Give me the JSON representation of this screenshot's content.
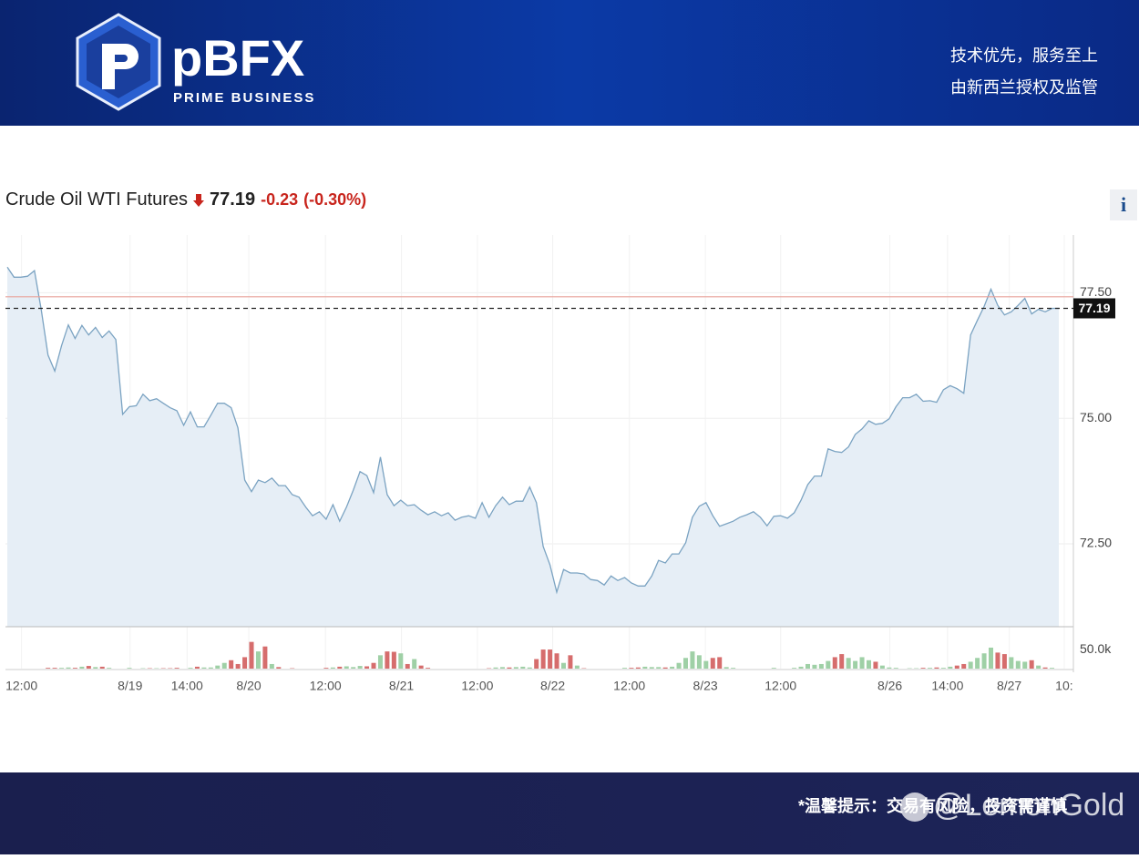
{
  "header": {
    "logo": "pBFX",
    "logo_subtitle": "PRIME BUSINESS",
    "taglines": [
      "技术优先，服务至上",
      "由新西兰授权及监管"
    ]
  },
  "chart_data": {
    "type": "line",
    "title": "Crude Oil WTI Futures",
    "price": "77.19",
    "change": "-0.23",
    "change_percent": "(-0.30%)",
    "info_button": "i",
    "color": "#7ba3c2",
    "fill": "#e6eef6",
    "values": [
      78.01,
      77.81,
      77.81,
      77.83,
      77.94,
      77.17,
      76.26,
      75.94,
      76.45,
      76.86,
      76.59,
      76.85,
      76.66,
      76.81,
      76.61,
      76.74,
      76.57,
      75.08,
      75.23,
      75.25,
      75.48,
      75.35,
      75.39,
      75.3,
      75.21,
      75.15,
      74.86,
      75.13,
      74.83,
      74.83,
      75.06,
      75.3,
      75.3,
      75.21,
      74.81,
      73.77,
      73.54,
      73.77,
      73.72,
      73.81,
      73.66,
      73.66,
      73.48,
      73.43,
      73.23,
      73.06,
      73.14,
      72.99,
      73.28,
      72.95,
      73.23,
      73.57,
      73.94,
      73.86,
      73.52,
      74.23,
      73.48,
      73.26,
      73.37,
      73.26,
      73.28,
      73.17,
      73.08,
      73.14,
      73.06,
      73.12,
      72.97,
      73.03,
      73.06,
      73.01,
      73.32,
      73.03,
      73.26,
      73.43,
      73.28,
      73.35,
      73.35,
      73.63,
      73.32,
      72.45,
      72.08,
      71.54,
      71.99,
      71.92,
      71.92,
      71.9,
      71.79,
      71.77,
      71.68,
      71.86,
      71.77,
      71.83,
      71.72,
      71.66,
      71.66,
      71.86,
      72.17,
      72.12,
      72.3,
      72.3,
      72.52,
      73.03,
      73.25,
      73.32,
      73.06,
      72.85,
      72.9,
      72.95,
      73.03,
      73.08,
      73.14,
      73.03,
      72.86,
      73.05,
      73.06,
      73.01,
      73.12,
      73.37,
      73.68,
      73.85,
      73.85,
      74.39,
      74.34,
      74.32,
      74.43,
      74.68,
      74.79,
      74.95,
      74.88,
      74.9,
      74.99,
      75.23,
      75.41,
      75.41,
      75.48,
      75.34,
      75.35,
      75.32,
      75.57,
      75.65,
      75.59,
      75.5,
      76.66,
      76.95,
      77.23,
      77.57,
      77.25,
      77.06,
      77.12,
      77.25,
      77.39,
      77.08,
      77.17,
      77.12,
      77.19,
      77.19
    ],
    "volume": [
      0,
      0,
      0,
      0,
      0,
      0,
      2000,
      2000,
      2000,
      3000,
      2000,
      5000,
      7000,
      4000,
      5000,
      2000,
      0,
      0,
      2000,
      0,
      1000,
      1000,
      1000,
      1000,
      1000,
      2000,
      0,
      2000,
      5000,
      3000,
      3000,
      8000,
      15000,
      22000,
      12000,
      30000,
      70000,
      45000,
      58000,
      12000,
      4000,
      0,
      1000,
      0,
      0,
      0,
      0,
      2000,
      3000,
      5000,
      6000,
      4000,
      7000,
      6000,
      15000,
      35000,
      45000,
      44000,
      40000,
      12000,
      25000,
      8000,
      2000,
      0,
      0,
      0,
      0,
      0,
      0,
      0,
      0,
      1000,
      3000,
      4000,
      3000,
      4000,
      5000,
      3000,
      25000,
      50000,
      50000,
      40000,
      15000,
      35000,
      8000,
      1000,
      0,
      0,
      0,
      0,
      0,
      2000,
      2000,
      3000,
      5000,
      4000,
      4000,
      3000,
      5000,
      15000,
      28000,
      45000,
      35000,
      20000,
      28000,
      30000,
      4000,
      2000,
      0,
      0,
      0,
      0,
      0,
      2000,
      0,
      0,
      2000,
      5000,
      12000,
      10000,
      12000,
      20000,
      30000,
      38000,
      28000,
      20000,
      30000,
      22000,
      18000,
      8000,
      3000,
      2000,
      0,
      1000,
      1000,
      2000,
      2000,
      3000,
      2000,
      5000,
      8000,
      12000,
      18000,
      28000,
      40000,
      55000,
      42000,
      38000,
      30000,
      20000,
      18000,
      22000,
      8000,
      3000,
      2000,
      0
    ],
    "up_color": "#9fd0a6",
    "down_color": "#d66d6d",
    "reference_line": 77.42,
    "reference_color": "#e8a39b",
    "last_value": 77.19,
    "xlim": [
      0,
      156
    ],
    "xticks": [
      {
        "value": 2.1,
        "label": "12:00"
      },
      {
        "value": 18.1,
        "label": "8/19"
      },
      {
        "value": 26.5,
        "label": "14:00"
      },
      {
        "value": 35.6,
        "label": "8/20"
      },
      {
        "value": 46.9,
        "label": "12:00"
      },
      {
        "value": 58.1,
        "label": "8/21"
      },
      {
        "value": 69.3,
        "label": "12:00"
      },
      {
        "value": 80.4,
        "label": "8/22"
      },
      {
        "value": 91.7,
        "label": "12:00"
      },
      {
        "value": 102.9,
        "label": "8/23"
      },
      {
        "value": 114.0,
        "label": "12:00"
      },
      {
        "value": 130.1,
        "label": "8/26"
      },
      {
        "value": 138.6,
        "label": "14:00"
      },
      {
        "value": 147.7,
        "label": "8/27"
      },
      {
        "value": 155.8,
        "label": "10:"
      }
    ],
    "ylim": [
      70.85,
      78.65
    ],
    "yticks": [
      {
        "value": 72.5,
        "label": "72.50"
      },
      {
        "value": 75,
        "label": "75.00"
      },
      {
        "value": 77.5,
        "label": "77.50"
      }
    ],
    "volume_ylim": [
      0,
      105000
    ],
    "volume_yticks": [
      {
        "value": 50000,
        "label": "50.0k"
      }
    ],
    "grid": true
  },
  "footer": {
    "notice": "*温馨提示：交易有风险，投资需谨慎",
    "watermark": "@LemonGold"
  }
}
